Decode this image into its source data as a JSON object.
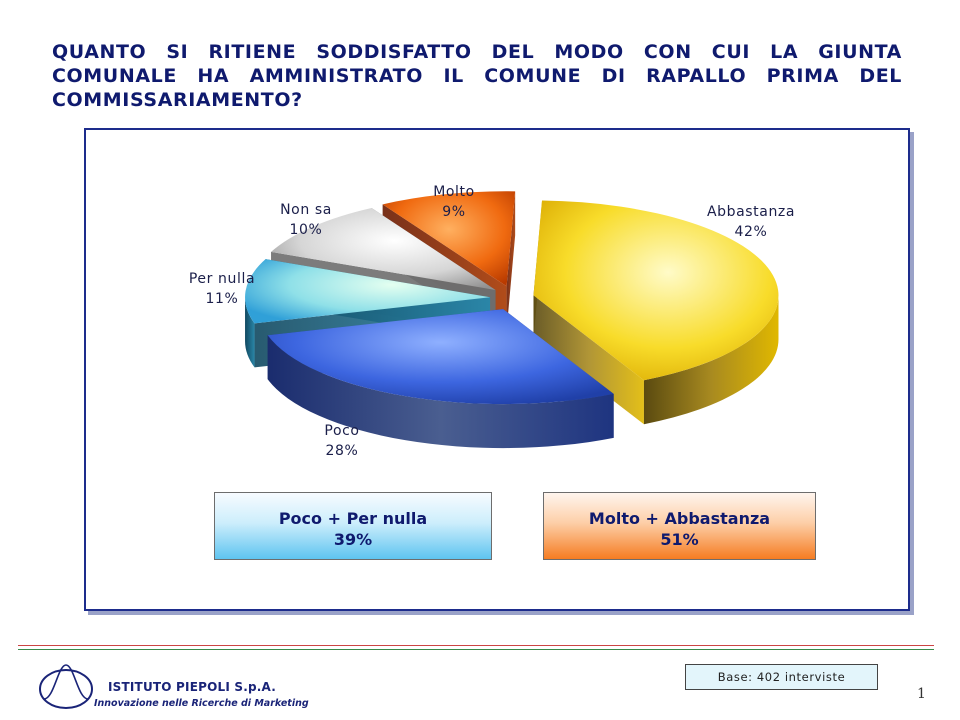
{
  "title": "QUANTO SI RITIENE SODDISFATTO DEL MODO CON CUI LA GIUNTA COMUNALE HA AMMINISTRATO IL COMUNE DI RAPALLO PRIMA DEL COMMISSARIAMENTO?",
  "chart_data": {
    "type": "pie",
    "title": "QUANTO SI RITIENE SODDISFATTO DEL MODO CON CUI LA GIUNTA COMUNALE HA AMMINISTRATO IL COMUNE DI RAPALLO PRIMA DEL COMMISSARIAMENTO?",
    "style": "3d-exploded",
    "slices": [
      {
        "label": "Abbastanza",
        "value": 42,
        "display": "42%",
        "color": "#f5d400"
      },
      {
        "label": "Poco",
        "value": 28,
        "display": "28%",
        "color": "#3a5fd0"
      },
      {
        "label": "Per nulla",
        "value": 11,
        "display": "11%",
        "color": "#4fc3e8"
      },
      {
        "label": "Non sa",
        "value": 10,
        "display": "10%",
        "color": "#c8c8c8"
      },
      {
        "label": "Molto",
        "value": 9,
        "display": "9%",
        "color": "#e85a10"
      }
    ],
    "summary": [
      {
        "label": "Poco + Per nulla",
        "value": "39%",
        "color": "#5ec4f0"
      },
      {
        "label": "Molto + Abbastanza",
        "value": "51%",
        "color": "#f57c22"
      }
    ]
  },
  "footer": {
    "base": "Base: 402 interviste",
    "page": "1",
    "company": "ISTITUTO PIEPOLI S.p.A.",
    "tagline": "Innovazione nelle Ricerche di Marketing"
  }
}
